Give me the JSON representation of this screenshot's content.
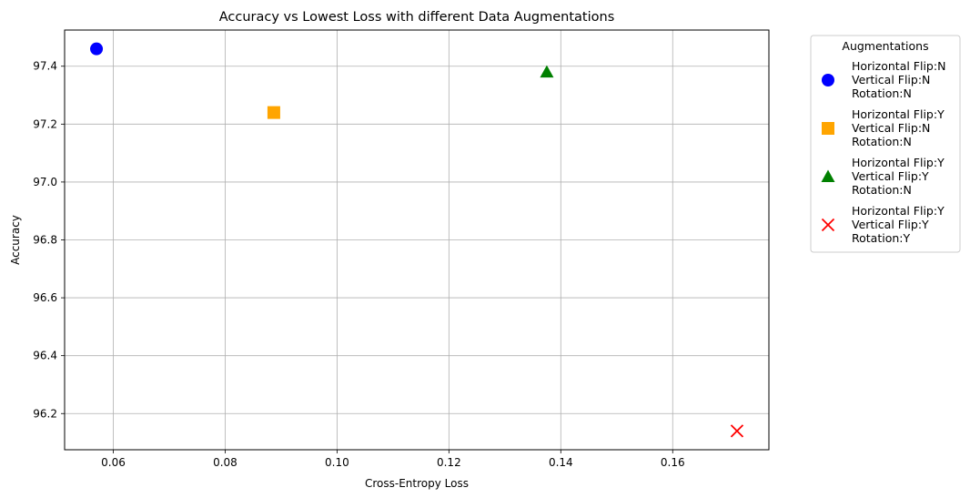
{
  "chart_data": {
    "type": "scatter",
    "title": "Accuracy vs Lowest Loss with different Data Augmentations",
    "xlabel": "Cross-Entropy Loss",
    "ylabel": "Accuracy",
    "xlim": [
      0.0513,
      0.1772
    ],
    "ylim": [
      96.075,
      97.525
    ],
    "xticks": [
      0.06,
      0.08,
      0.1,
      0.12,
      0.14,
      0.16
    ],
    "xtick_labels": [
      "0.06",
      "0.08",
      "0.10",
      "0.12",
      "0.14",
      "0.16"
    ],
    "yticks": [
      96.2,
      96.4,
      96.6,
      96.8,
      97.0,
      97.2,
      97.4
    ],
    "ytick_labels": [
      "96.2",
      "96.4",
      "96.6",
      "96.8",
      "97.0",
      "97.2",
      "97.4"
    ],
    "grid": true,
    "legend_title": "Augmentations",
    "legend_placement": "outside-right-top",
    "series": [
      {
        "name": "Horizontal Flip:N\nVertical Flip:N\nRotation:N",
        "name_lines": [
          "Horizontal Flip:N",
          "Vertical Flip:N",
          "Rotation:N"
        ],
        "marker": "circle",
        "color": "#0000ff",
        "points": [
          {
            "x": 0.057,
            "y": 97.46
          }
        ]
      },
      {
        "name": "Horizontal Flip:Y\nVertical Flip:N\nRotation:N",
        "name_lines": [
          "Horizontal Flip:Y",
          "Vertical Flip:N",
          "Rotation:N"
        ],
        "marker": "square",
        "color": "#ffa500",
        "points": [
          {
            "x": 0.0887,
            "y": 97.24
          }
        ]
      },
      {
        "name": "Horizontal Flip:Y\nVertical Flip:Y\nRotation:N",
        "name_lines": [
          "Horizontal Flip:Y",
          "Vertical Flip:Y",
          "Rotation:N"
        ],
        "marker": "triangle",
        "color": "#008000",
        "points": [
          {
            "x": 0.1375,
            "y": 97.38
          }
        ]
      },
      {
        "name": "Horizontal Flip:Y\nVertical Flip:Y\nRotation:Y",
        "name_lines": [
          "Horizontal Flip:Y",
          "Vertical Flip:Y",
          "Rotation:Y"
        ],
        "marker": "x",
        "color": "#ff0000",
        "points": [
          {
            "x": 0.1715,
            "y": 96.14
          }
        ]
      }
    ]
  }
}
